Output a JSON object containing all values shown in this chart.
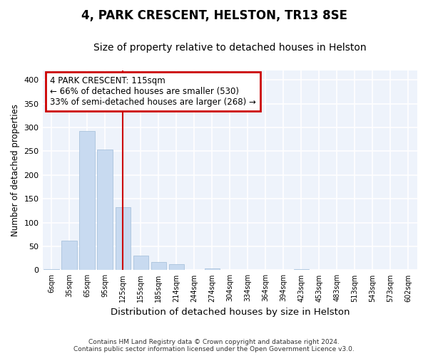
{
  "title_line1": "4, PARK CRESCENT, HELSTON, TR13 8SE",
  "title_line2": "Size of property relative to detached houses in Helston",
  "xlabel": "Distribution of detached houses by size in Helston",
  "ylabel": "Number of detached properties",
  "bar_labels": [
    "6sqm",
    "35sqm",
    "65sqm",
    "95sqm",
    "125sqm",
    "155sqm",
    "185sqm",
    "214sqm",
    "244sqm",
    "274sqm",
    "304sqm",
    "334sqm",
    "364sqm",
    "394sqm",
    "423sqm",
    "453sqm",
    "483sqm",
    "513sqm",
    "543sqm",
    "573sqm",
    "602sqm"
  ],
  "bar_values": [
    2,
    62,
    293,
    253,
    133,
    30,
    17,
    12,
    0,
    4,
    0,
    0,
    0,
    0,
    2,
    0,
    0,
    0,
    0,
    0,
    0
  ],
  "bar_color": "#c8daf0",
  "bar_edge_color": "#a0bcd8",
  "bg_color": "#ffffff",
  "plot_bg_color": "#eef3fb",
  "grid_color": "#ffffff",
  "annotation_text": "4 PARK CRESCENT: 115sqm\n← 66% of detached houses are smaller (530)\n33% of semi-detached houses are larger (268) →",
  "annotation_box_color": "#ffffff",
  "annotation_box_edge": "#cc0000",
  "ylim": [
    0,
    420
  ],
  "yticks": [
    0,
    50,
    100,
    150,
    200,
    250,
    300,
    350,
    400
  ],
  "footer": "Contains HM Land Registry data © Crown copyright and database right 2024.\nContains public sector information licensed under the Open Government Licence v3.0.",
  "title_fontsize": 12,
  "subtitle_fontsize": 10,
  "xlabel_fontsize": 9.5,
  "ylabel_fontsize": 8.5
}
